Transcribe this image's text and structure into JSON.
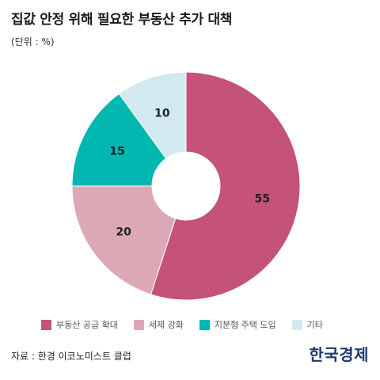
{
  "header": {
    "title": "집값 안정 위해 필요한 부동산 추가 대책",
    "unit": "(단위 : %)"
  },
  "chart_data": {
    "type": "pie",
    "style": "donut",
    "categories": [
      "부동산 공급 확대",
      "세제 강화",
      "지분형 주택 도입",
      "기타"
    ],
    "values": [
      55,
      20,
      15,
      10
    ],
    "colors": [
      "#c4527a",
      "#dda8b5",
      "#00b8b0",
      "#d2e9f1"
    ],
    "legend_position": "bottom"
  },
  "footer": {
    "source": "자료 : 한경 이코노미스트 클럽",
    "brand": "한국경제"
  }
}
